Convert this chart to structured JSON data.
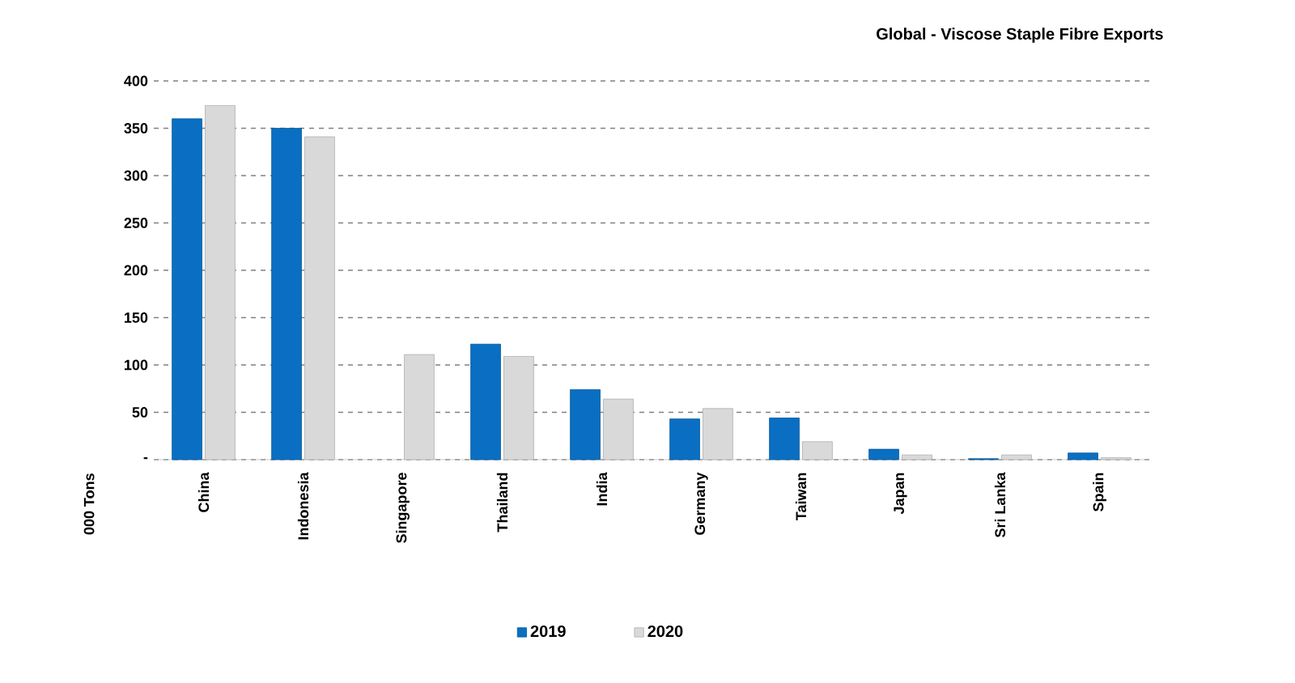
{
  "chart_data": {
    "type": "bar",
    "title": "Global - Viscose Staple Fibre Exports",
    "ylabel": "000 Tons",
    "categories": [
      "China",
      "Indonesia",
      "Singapore",
      "Thailand",
      "India",
      "Germany",
      "Taiwan",
      "Japan",
      "Sri Lanka",
      "Spain"
    ],
    "series": [
      {
        "name": "2019",
        "color": "#0a6fc2",
        "values": [
          360,
          350,
          null,
          122,
          74,
          43,
          44,
          11,
          1,
          7
        ]
      },
      {
        "name": "2020",
        "color": "#d9d9d9",
        "values": [
          374,
          341,
          111,
          109,
          64,
          54,
          19,
          5,
          5,
          2
        ]
      }
    ],
    "ylim": [
      0,
      400
    ],
    "yticks": [
      {
        "value": 0,
        "label": "-"
      },
      50,
      100,
      150,
      200,
      250,
      300,
      350,
      400
    ],
    "grid": "y",
    "legend": "bottom"
  }
}
